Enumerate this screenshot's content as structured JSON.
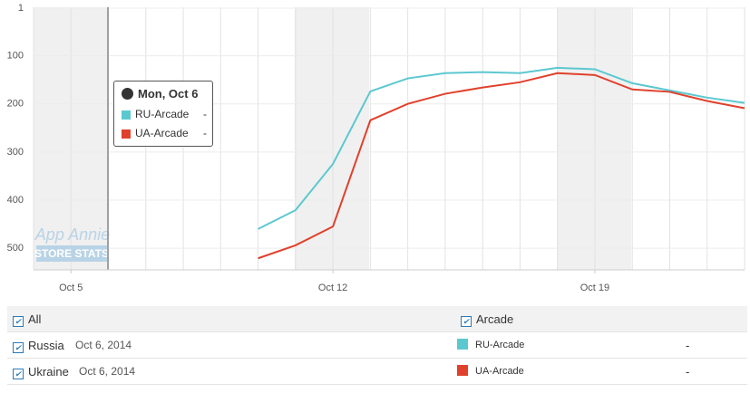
{
  "chart_data": {
    "type": "line",
    "x": [
      10,
      11,
      12,
      13,
      14,
      15,
      16,
      17,
      18,
      19,
      20,
      21,
      22,
      23
    ],
    "xlim": [
      4,
      23
    ],
    "xticks": [
      {
        "value": 5,
        "label": "Oct 5"
      },
      {
        "value": 12,
        "label": "Oct 12"
      },
      {
        "value": 19,
        "label": "Oct 19"
      }
    ],
    "ylim": [
      1,
      545
    ],
    "inverted": true,
    "yticks": [
      1,
      100,
      200,
      300,
      400,
      500
    ],
    "grid": true,
    "series": [
      {
        "name": "RU-Arcade",
        "color": "#5bc8d0",
        "values": [
          460,
          421,
          325,
          174,
          147,
          136,
          134,
          136,
          125,
          128,
          157,
          172,
          187,
          198
        ]
      },
      {
        "name": "UA-Arcade",
        "color": "#e0412c",
        "values": [
          521,
          494,
          455,
          234,
          200,
          179,
          166,
          155,
          136,
          140,
          170,
          175,
          194,
          209
        ]
      }
    ]
  },
  "tooltip": {
    "title": "Mon, Oct 6",
    "values": [
      "-",
      "-"
    ]
  },
  "watermark": {
    "line1": "App Annie",
    "line2": "STORE STATS"
  },
  "table": {
    "header": [
      "All",
      "Arcade"
    ],
    "rows": [
      [
        "Russia",
        "Oct 6, 2014",
        "-"
      ],
      [
        "Ukraine",
        "Oct 6, 2014",
        "-"
      ]
    ]
  }
}
